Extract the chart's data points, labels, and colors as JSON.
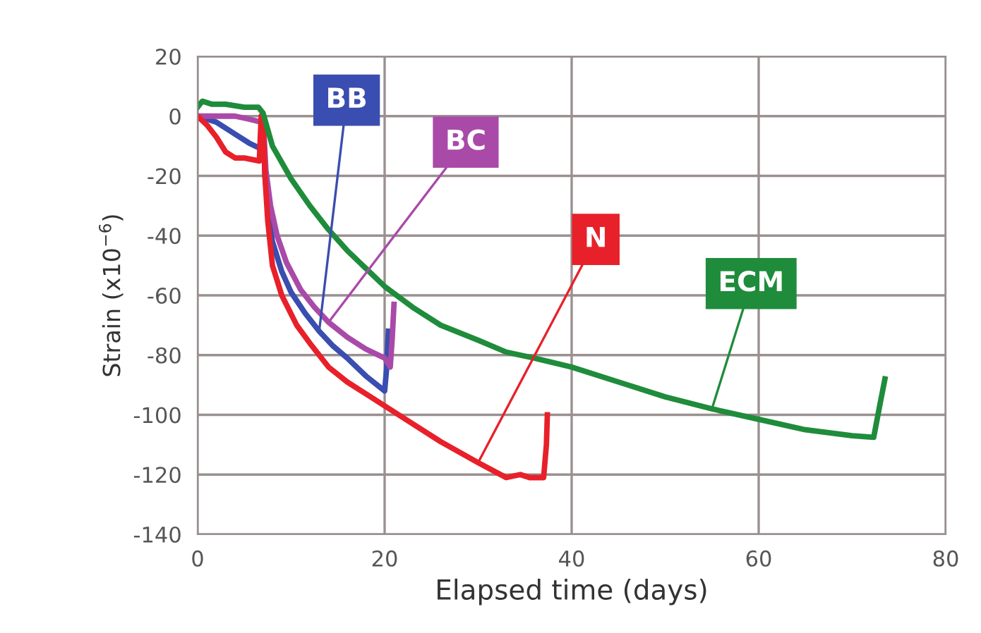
{
  "chart_data": {
    "type": "line",
    "xlabel": "Elapsed time (days)",
    "ylabel": "Strain (x10$^{−6}$)",
    "xlim": [
      0,
      80
    ],
    "xticks": [
      0,
      20,
      40,
      60,
      80
    ],
    "ylim": [
      -140,
      20
    ],
    "yticks": [
      -140,
      -120,
      -100,
      -80,
      -60,
      -40,
      -20,
      0,
      20
    ],
    "grid": true,
    "marker": "none",
    "line_style": "solid",
    "series": [
      {
        "name": "BB",
        "color": "#3a4db0",
        "x": [
          0,
          2,
          4,
          5.5,
          6.8,
          7,
          7.2,
          7.6,
          8,
          9,
          10,
          11.5,
          13,
          14.5,
          16,
          18,
          20,
          20.2,
          20.4
        ],
        "values": [
          0,
          -2,
          -6,
          -9,
          -11,
          0,
          -20,
          -33,
          -42,
          -52,
          -59,
          -66,
          -72,
          -77,
          -81,
          -87,
          -92,
          -85,
          -72
        ]
      },
      {
        "name": "BC",
        "color": "#a94aa8",
        "x": [
          0,
          2,
          4,
          5.5,
          6.8,
          7,
          7.3,
          7.8,
          8.5,
          9.5,
          11,
          12.5,
          14,
          16,
          18,
          20,
          20.6,
          20.8,
          21
        ],
        "values": [
          0,
          0,
          0,
          -1,
          -2,
          0,
          -18,
          -30,
          -40,
          -49,
          -58,
          -64,
          -69,
          -74,
          -78,
          -81,
          -84,
          -75,
          -63
        ]
      },
      {
        "name": "N",
        "color": "#e8202a",
        "x": [
          0,
          1,
          2,
          3,
          4,
          5,
          6.6,
          6.8,
          7,
          7.2,
          7.5,
          8,
          9,
          10.6,
          12,
          14,
          16,
          18,
          20,
          23,
          26,
          30,
          33,
          34.5,
          35.5,
          37,
          37.3,
          37.4
        ],
        "values": [
          0,
          -3,
          -7,
          -12,
          -14,
          -14,
          -15,
          0,
          -2,
          -20,
          -35,
          -50,
          -60,
          -70,
          -76,
          -84,
          -89,
          -93,
          -97,
          -103,
          -109,
          -116,
          -121,
          -120,
          -121,
          -121,
          -110,
          -100
        ]
      },
      {
        "name": "ECM",
        "color": "#1f8c3b",
        "x": [
          0,
          0.5,
          1.5,
          3,
          5,
          6.5,
          7,
          8,
          10,
          12,
          14,
          16,
          18,
          20,
          23,
          26,
          30,
          33,
          36,
          40,
          45,
          50,
          55,
          60,
          65,
          70,
          72.3,
          73,
          73.5
        ],
        "values": [
          3,
          5,
          4,
          4,
          3,
          3,
          1,
          -10,
          -21,
          -30,
          -38,
          -45,
          -51,
          -57,
          -64,
          -70,
          -75,
          -79,
          -81,
          -84,
          -89,
          -94,
          -98,
          -101.5,
          -105,
          -107,
          -107.5,
          -96,
          -88
        ]
      }
    ]
  }
}
